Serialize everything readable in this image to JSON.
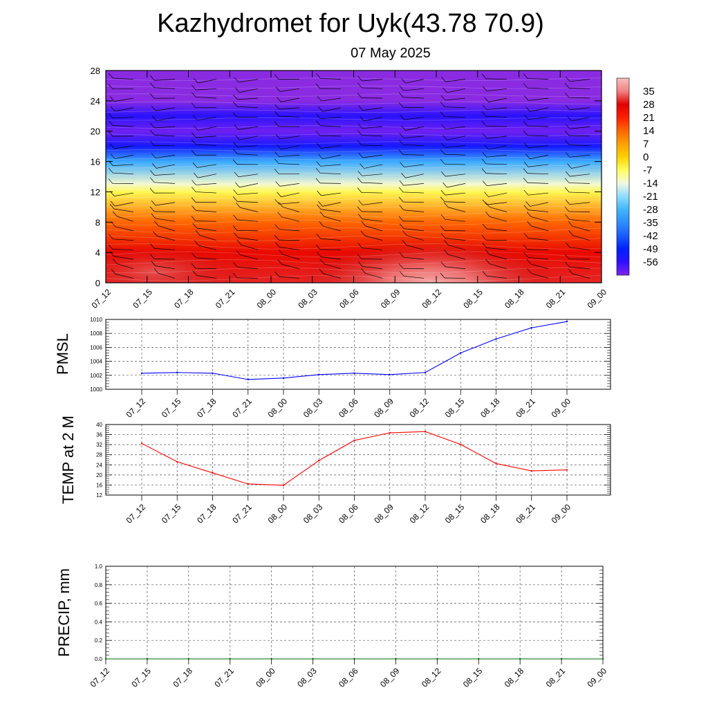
{
  "title": "Kazhydromet for Uyk(43.78 70.9)",
  "subtitle": "07 May 2025",
  "chart_data": [
    {
      "type": "heatmap",
      "x_tick_labels": [
        "07_12",
        "07_15",
        "07_18",
        "07_21",
        "08_00",
        "08_03",
        "08_06",
        "08_09",
        "08_12",
        "08_15",
        "08_18",
        "08_21",
        "09_00"
      ],
      "y_tick_labels": [
        "0",
        "4",
        "8",
        "12",
        "16",
        "20",
        "24",
        "28"
      ],
      "ylim": [
        0,
        28
      ],
      "colorbar": {
        "labels": [
          "35",
          "28",
          "21",
          "14",
          "7",
          "0",
          "-7",
          "-14",
          "-21",
          "-28",
          "-35",
          "-42",
          "-49",
          "-56"
        ],
        "range": [
          -63,
          42
        ]
      },
      "temperature_profile": [
        {
          "level": 0,
          "value": 30
        },
        {
          "level": 4,
          "value": 26
        },
        {
          "level": 8,
          "value": 14
        },
        {
          "level": 12,
          "value": -6
        },
        {
          "level": 13,
          "value": -13
        },
        {
          "level": 16,
          "value": -30
        },
        {
          "level": 18,
          "value": -52
        },
        {
          "level": 20,
          "value": -62
        },
        {
          "level": 22,
          "value": -55
        },
        {
          "level": 24,
          "value": -66
        },
        {
          "level": 28,
          "value": -66
        }
      ],
      "warm_core": {
        "x_index": 8,
        "level": 0,
        "value": 38
      },
      "wind_barbs": "present"
    },
    {
      "type": "line",
      "ylabel": "PMSL",
      "x_tick_labels": [
        "07_12",
        "07_15",
        "07_18",
        "07_21",
        "08_00",
        "08_03",
        "08_06",
        "08_09",
        "08_12",
        "08_15",
        "08_18",
        "08_21",
        "09_00"
      ],
      "y_tick_labels": [
        "1000",
        "1002",
        "1004",
        "1006",
        "1008",
        "1010"
      ],
      "ylim": [
        1000,
        1010
      ],
      "series": [
        {
          "color": "#0000ff",
          "values": [
            1002.3,
            1002.4,
            1002.3,
            1001.4,
            1001.6,
            1002.1,
            1002.3,
            1002.1,
            1002.4,
            1005.2,
            1007.2,
            1008.8,
            1009.7
          ]
        }
      ]
    },
    {
      "type": "line",
      "ylabel": "TEMP at 2 M",
      "x_tick_labels": [
        "07_12",
        "07_15",
        "07_18",
        "07_21",
        "08_00",
        "08_03",
        "08_06",
        "08_09",
        "08_12",
        "08_15",
        "08_18",
        "08_21",
        "09_00"
      ],
      "y_tick_labels": [
        "12",
        "16",
        "20",
        "24",
        "28",
        "32",
        "36",
        "40"
      ],
      "ylim": [
        12,
        40
      ],
      "series": [
        {
          "color": "#ff0000",
          "values": [
            32.5,
            25.2,
            20.8,
            16.4,
            15.9,
            25.7,
            33.7,
            36.7,
            37.2,
            32.1,
            24.5,
            21.6,
            22.0
          ]
        }
      ]
    },
    {
      "type": "line",
      "ylabel": "PRECIP, mm",
      "x_tick_labels": [
        "07_12",
        "07_15",
        "07_18",
        "07_21",
        "08_00",
        "08_03",
        "08_06",
        "08_09",
        "08_12",
        "08_15",
        "08_18",
        "08_21",
        "09_00"
      ],
      "y_tick_labels": [
        "0.0",
        "0.2",
        "0.4",
        "0.6",
        "0.8",
        "1.0"
      ],
      "ylim": [
        0,
        1
      ],
      "series": [
        {
          "color": "#006400",
          "values": [
            0,
            0,
            0,
            0,
            0,
            0,
            0,
            0,
            0,
            0,
            0,
            0,
            0
          ]
        }
      ]
    }
  ]
}
